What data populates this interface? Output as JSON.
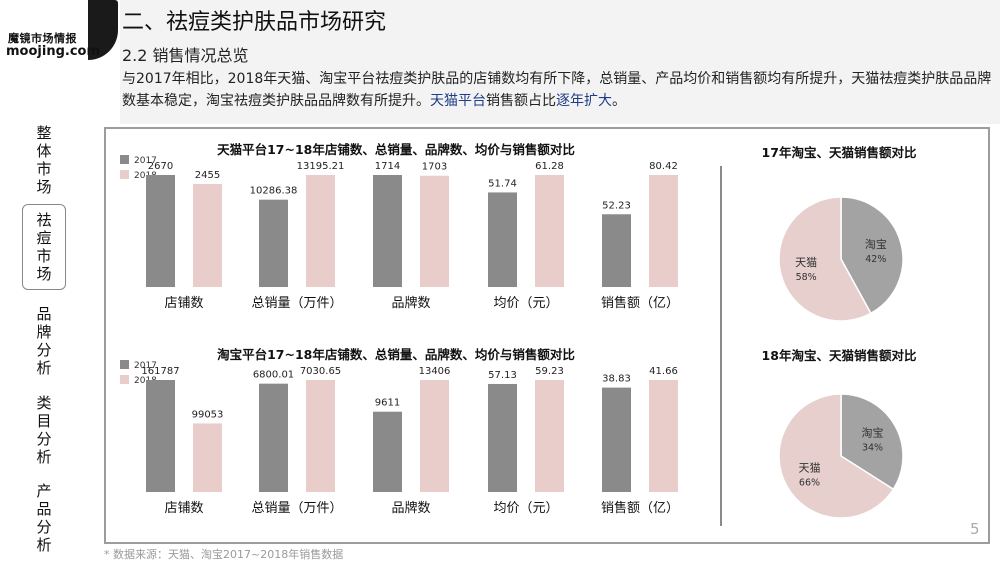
{
  "brand": {
    "name_cn": "魔镜市场情报",
    "name_en": "moojing.com"
  },
  "header": {
    "title": "二、祛痘类护肤品市场研究",
    "subtitle": "2.2 销售情况总览",
    "desc_part1": "与2017年相比，2018年天猫、淘宝平台祛痘类护肤品的店铺数均有所下降，总销量、产品均价和销售额均有所提升，天猫祛痘类护肤品品牌数基本稳定，淘宝祛痘类护肤品品牌数有所提升。",
    "desc_highlight1": "天猫平台",
    "desc_part2": "销售额占比",
    "desc_highlight2": "逐年扩大",
    "desc_end": "。"
  },
  "nav": [
    {
      "label": "整体市场",
      "active": false
    },
    {
      "label": "祛痘市场",
      "active": true
    },
    {
      "label": "品牌分析",
      "active": false
    },
    {
      "label": "类目分析",
      "active": false
    },
    {
      "label": "产品分析",
      "active": false
    }
  ],
  "footnote": "* 数据来源：天猫、淘宝2017~2018年销售数据",
  "page_number": "5",
  "colors": {
    "y2017": "#8a8a8a",
    "y2018": "#e9cdcb",
    "taobao_slice": "#a3a3a3",
    "tmall_slice": "#e6cfcd"
  },
  "chart_data": [
    {
      "type": "bar",
      "title": "天猫平台17~18年店铺数、总销量、品牌数、均价与销售额对比",
      "categories": [
        "店铺数",
        "总销量（万件）",
        "品牌数",
        "均价（元）",
        "销售额（亿）"
      ],
      "series": [
        {
          "name": "2017",
          "values": [
            2670,
            10286.38,
            1714,
            51.74,
            52.23
          ],
          "labels": [
            "2670",
            "10286.38",
            "1714",
            "51.74",
            "52.23"
          ]
        },
        {
          "name": "2018",
          "values": [
            2455,
            13195.21,
            1703,
            61.28,
            80.42
          ],
          "labels": [
            "2455",
            "13195.21",
            "1703",
            "61.28",
            "80.42"
          ]
        }
      ],
      "legend": "top-left"
    },
    {
      "type": "bar",
      "title": "淘宝平台17~18年店铺数、总销量、品牌数、均价与销售额对比",
      "categories": [
        "店铺数",
        "总销量（万件）",
        "品牌数",
        "均价（元）",
        "销售额（亿）"
      ],
      "series": [
        {
          "name": "2017",
          "values": [
            161787,
            6800.01,
            9611,
            57.13,
            38.83
          ],
          "labels": [
            "161787",
            "6800.01",
            "9611",
            "57.13",
            "38.83"
          ]
        },
        {
          "name": "2018",
          "values": [
            99053,
            7030.65,
            13406,
            59.23,
            41.66
          ],
          "labels": [
            "99053",
            "7030.65",
            "13406",
            "59.23",
            "41.66"
          ]
        }
      ],
      "legend": "top-left"
    },
    {
      "type": "pie",
      "title": "17年淘宝、天猫销售额对比",
      "slices": [
        {
          "name": "淘宝",
          "value": 42,
          "label": "42%"
        },
        {
          "name": "天猫",
          "value": 58,
          "label": "58%"
        }
      ]
    },
    {
      "type": "pie",
      "title": "18年淘宝、天猫销售额对比",
      "slices": [
        {
          "name": "淘宝",
          "value": 34,
          "label": "34%"
        },
        {
          "name": "天猫",
          "value": 66,
          "label": "66%"
        }
      ]
    }
  ]
}
